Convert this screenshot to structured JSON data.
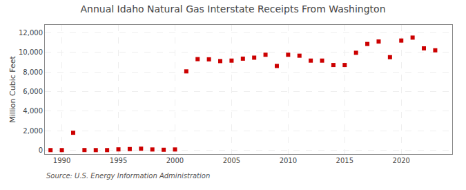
{
  "chart_data": {
    "type": "scatter",
    "title": "Annual Idaho Natural Gas Interstate Receipts From Washington",
    "ylabel": "Million Cubic Feet",
    "annotations": [
      "Source: U.S. Energy Information Administration"
    ],
    "color": "#cc0000",
    "marker": "square",
    "grid": true,
    "xlim": [
      1988.5,
      2024.5
    ],
    "ylim": [
      -400,
      12800
    ],
    "xticks": [
      1990,
      1995,
      2000,
      2005,
      2010,
      2015,
      2020
    ],
    "yticks": [
      0,
      {
        "value": 2000,
        "label": "2,000"
      },
      {
        "value": 4000,
        "label": "4,000"
      },
      {
        "value": 6000,
        "label": "6,000"
      },
      {
        "value": 8000,
        "label": "8,000"
      },
      {
        "value": 10000,
        "label": "10,000"
      },
      {
        "value": 12000,
        "label": "12,000"
      }
    ],
    "x": [
      1989,
      1990,
      1991,
      1992,
      1993,
      1994,
      1995,
      1996,
      1997,
      1998,
      1999,
      2000,
      2001,
      2002,
      2003,
      2004,
      2005,
      2006,
      2007,
      2008,
      2009,
      2010,
      2011,
      2012,
      2013,
      2014,
      2015,
      2016,
      2017,
      2018,
      2019,
      2020,
      2021,
      2022,
      2023
    ],
    "values": [
      5,
      5,
      1780,
      10,
      5,
      5,
      80,
      110,
      150,
      70,
      40,
      70,
      8050,
      9300,
      9280,
      9100,
      9150,
      9350,
      9450,
      9750,
      8600,
      9750,
      9650,
      9150,
      9150,
      8700,
      8700,
      9950,
      10850,
      11100,
      9500,
      11200,
      11500,
      10400,
      10200
    ]
  }
}
